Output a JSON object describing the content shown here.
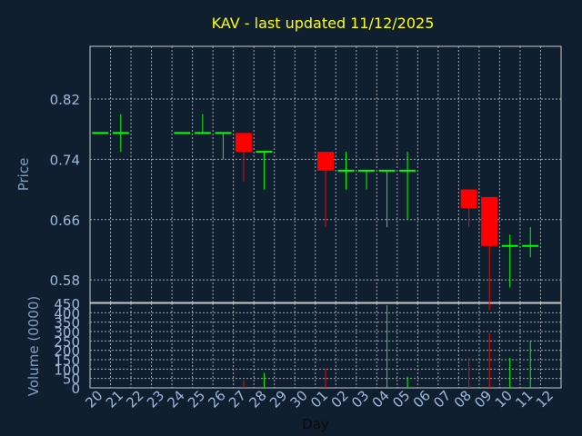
{
  "chart_data": {
    "type": "candlestick",
    "title": "KAV - last updated 11/12/2025",
    "price_axis": {
      "label": "Price",
      "ylim": [
        0.55,
        0.89
      ],
      "ticks": [
        "0.58",
        "0.66",
        "0.74",
        "0.82"
      ]
    },
    "volume_axis": {
      "label": "Volume (0000)",
      "ylim": [
        0,
        450
      ],
      "ticks": [
        "0",
        "50",
        "100",
        "150",
        "200",
        "250",
        "300",
        "350",
        "400",
        "450"
      ]
    },
    "x_axis": {
      "label": "Day",
      "ticks": [
        "20",
        "21",
        "22",
        "23",
        "24",
        "25",
        "26",
        "27",
        "28",
        "29",
        "30",
        "01",
        "02",
        "03",
        "04",
        "05",
        "06",
        "07",
        "08",
        "09",
        "10",
        "11",
        "12"
      ]
    },
    "grid": true,
    "colors": {
      "background": "#0f1f30",
      "plot_bg": "#0f1f30",
      "grid": "#c8c8c8",
      "title": "#ffff00",
      "axis_text": "#9fb9d9",
      "label_text": "#7f9fbf",
      "up": "#00ff00",
      "down": "#ff0000"
    },
    "candles": [
      {
        "day": "20",
        "open": 0.775,
        "high": 0.775,
        "low": 0.775,
        "close": 0.775,
        "volume": 0
      },
      {
        "day": "21",
        "open": 0.775,
        "high": 0.8,
        "low": 0.75,
        "close": 0.775,
        "volume": 0
      },
      {
        "day": "24",
        "open": 0.775,
        "high": 0.775,
        "low": 0.775,
        "close": 0.775,
        "volume": 0
      },
      {
        "day": "25",
        "open": 0.775,
        "high": 0.8,
        "low": 0.775,
        "close": 0.775,
        "volume": 0
      },
      {
        "day": "26",
        "open": 0.775,
        "high": 0.775,
        "low": 0.74,
        "close": 0.775,
        "volume": 0
      },
      {
        "day": "27",
        "open": 0.775,
        "high": 0.775,
        "low": 0.71,
        "close": 0.75,
        "volume": 40
      },
      {
        "day": "28",
        "open": 0.75,
        "high": 0.75,
        "low": 0.7,
        "close": 0.75,
        "volume": 80
      },
      {
        "day": "01",
        "open": 0.75,
        "high": 0.75,
        "low": 0.65,
        "close": 0.725,
        "volume": 100
      },
      {
        "day": "02",
        "open": 0.725,
        "high": 0.75,
        "low": 0.7,
        "close": 0.725,
        "volume": 0
      },
      {
        "day": "03",
        "open": 0.725,
        "high": 0.725,
        "low": 0.7,
        "close": 0.725,
        "volume": 0
      },
      {
        "day": "04",
        "open": 0.725,
        "high": 0.725,
        "low": 0.65,
        "close": 0.725,
        "volume": 440
      },
      {
        "day": "05",
        "open": 0.725,
        "high": 0.75,
        "low": 0.66,
        "close": 0.725,
        "volume": 60
      },
      {
        "day": "08",
        "open": 0.7,
        "high": 0.7,
        "low": 0.65,
        "close": 0.675,
        "volume": 160
      },
      {
        "day": "09",
        "open": 0.69,
        "high": 0.69,
        "low": 0.54,
        "close": 0.625,
        "volume": 290
      },
      {
        "day": "10",
        "open": 0.625,
        "high": 0.64,
        "low": 0.57,
        "close": 0.625,
        "volume": 160
      },
      {
        "day": "11",
        "open": 0.625,
        "high": 0.65,
        "low": 0.61,
        "close": 0.625,
        "volume": 250
      }
    ]
  }
}
